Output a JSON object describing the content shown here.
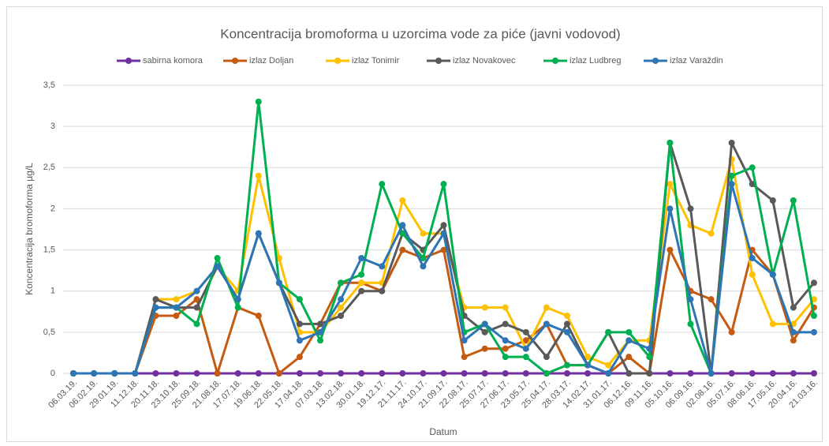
{
  "chart_data": {
    "type": "line",
    "title": "Koncentracija bromoforma u uzorcima vode za piće (javni vodovod)",
    "x_label": "Datum",
    "y_label": "Koncentracija bromoforma µg/L",
    "categories": [
      "06.03.19.",
      "06.02.19.",
      "29.01.19.",
      "11.12.18.",
      "20.11.18.",
      "23.10.18.",
      "25.09.18.",
      "21.08.18.",
      "17.07.18.",
      "19.06.18.",
      "22.05.18.",
      "17.04.18.",
      "07.03.18.",
      "13.02.18.",
      "30.01.18.",
      "19.12.17.",
      "21.11.17.",
      "24.10.17.",
      "21.09.17.",
      "22.08.17.",
      "25.07.17.",
      "27.06.17.",
      "23.05.17.",
      "25.04.17.",
      "28.03.17.",
      "14.02.17.",
      "31.01.17.",
      "06.12.16.",
      "09.11.16.",
      "05.10.16.",
      "06.09.16.",
      "02.08.16.",
      "05.07.16.",
      "08.06.16.",
      "17.05.16.",
      "20.04.16.",
      "21.03.16."
    ],
    "series": [
      {
        "name": "sabirna komora",
        "color": "#7030a0",
        "values": [
          0,
          0,
          0,
          0,
          0,
          0,
          0,
          0,
          0,
          0,
          0,
          0,
          0,
          0,
          0,
          0,
          0,
          0,
          0,
          0,
          0,
          0,
          0,
          0,
          0,
          0,
          0,
          0,
          0,
          0,
          0,
          0,
          0,
          0,
          0,
          0,
          0
        ]
      },
      {
        "name": "izlaz Doljan",
        "color": "#c55a11",
        "values": [
          0,
          0,
          0,
          0,
          0.7,
          0.7,
          0.9,
          0,
          0.8,
          0.7,
          0,
          0.2,
          0.6,
          1.1,
          1.1,
          1.0,
          1.5,
          1.4,
          1.5,
          0.2,
          0.3,
          0.3,
          0.4,
          0.6,
          0.1,
          0.1,
          0,
          0.2,
          0,
          1.5,
          1.0,
          0.9,
          0.5,
          1.5,
          1.2,
          0.4,
          0.8
        ]
      },
      {
        "name": "izlaz Tonimir",
        "color": "#ffc000",
        "values": [
          0,
          0,
          0,
          0,
          0.9,
          0.9,
          1.0,
          1.3,
          1.0,
          2.4,
          1.4,
          0.5,
          0.5,
          0.8,
          1.1,
          1.1,
          2.1,
          1.7,
          1.7,
          0.8,
          0.8,
          0.8,
          0.3,
          0.8,
          0.7,
          0.2,
          0.1,
          0.4,
          0.4,
          2.3,
          1.8,
          1.7,
          2.6,
          1.2,
          0.6,
          0.6,
          0.9
        ]
      },
      {
        "name": "izlaz Novakovec",
        "color": "#595959",
        "values": [
          0,
          0,
          0,
          0,
          0.9,
          0.8,
          0.8,
          1.3,
          0.9,
          1.7,
          1.1,
          0.6,
          0.6,
          0.7,
          1.0,
          1.0,
          1.7,
          1.5,
          1.8,
          0.7,
          0.5,
          0.6,
          0.5,
          0.2,
          0.6,
          0.1,
          0.5,
          0,
          0,
          2.8,
          2.0,
          0,
          2.8,
          2.3,
          2.1,
          0.8,
          1.1
        ]
      },
      {
        "name": "izlaz Ludbreg",
        "color": "#00b050",
        "values": [
          0,
          0,
          0,
          0,
          0.8,
          0.8,
          0.6,
          1.4,
          0.8,
          3.3,
          1.1,
          0.9,
          0.4,
          1.1,
          1.2,
          2.3,
          1.7,
          1.4,
          2.3,
          0.5,
          0.6,
          0.2,
          0.2,
          0,
          0.1,
          0.1,
          0.5,
          0.5,
          0.2,
          2.8,
          0.6,
          0,
          2.4,
          2.5,
          1.2,
          2.1,
          0.7
        ]
      },
      {
        "name": "izlaz Varaždin",
        "color": "#2e75b6",
        "values": [
          0,
          0,
          0,
          0,
          0.8,
          0.8,
          1.0,
          1.3,
          0.9,
          1.7,
          1.1,
          0.4,
          0.5,
          0.9,
          1.4,
          1.3,
          1.8,
          1.3,
          1.7,
          0.4,
          0.6,
          0.4,
          0.3,
          0.6,
          0.5,
          0.1,
          0,
          0.4,
          0.3,
          2.0,
          0.9,
          0,
          2.3,
          1.4,
          1.2,
          0.5,
          0.5
        ]
      }
    ],
    "ylim": [
      0,
      3.5
    ],
    "yticks": [
      0,
      {
        "value": 0.5,
        "label": "0,5"
      },
      1,
      {
        "value": 1.5,
        "label": "1,5"
      },
      2,
      {
        "value": 2.5,
        "label": "2,5"
      },
      3,
      {
        "value": 3.5,
        "label": "3,5"
      }
    ],
    "grid": true,
    "legend": "top"
  }
}
